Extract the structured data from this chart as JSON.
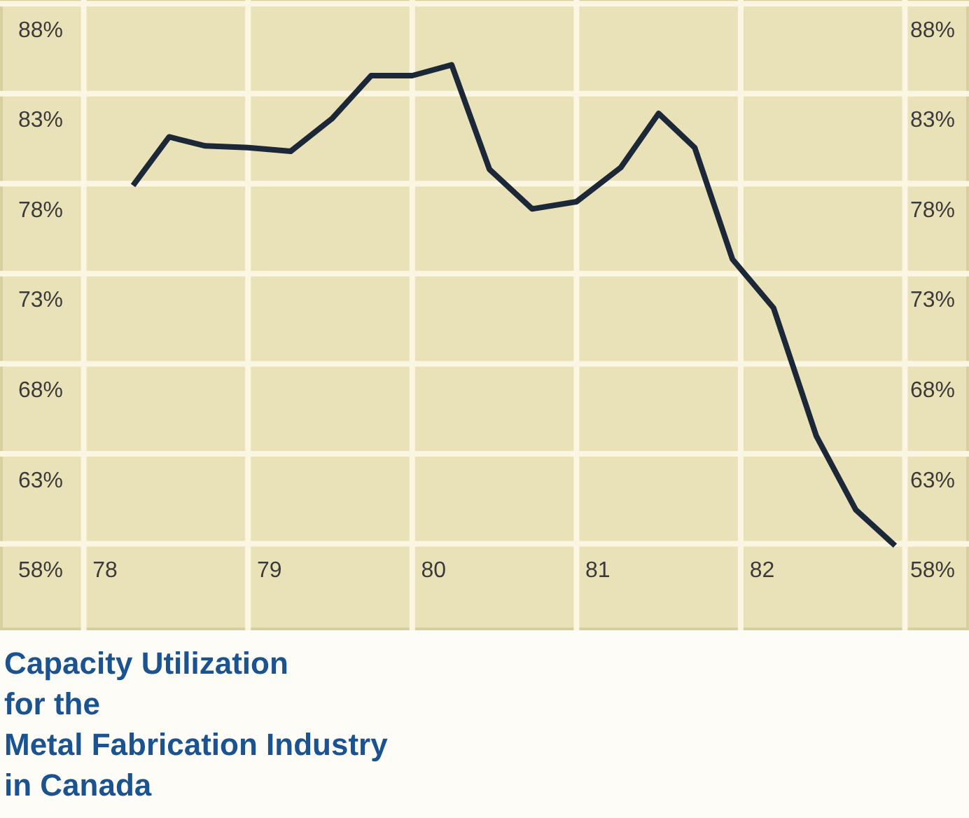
{
  "chart_data": {
    "type": "line",
    "title": "Capacity Utilization\nfor the\nMetal Fabrication Industry\nin Canada",
    "x": [
      78.17,
      78.39,
      78.61,
      78.87,
      79.13,
      79.38,
      79.62,
      79.87,
      80.11,
      80.34,
      80.6,
      80.87,
      81.14,
      81.37,
      81.59,
      81.82,
      82.07,
      82.33,
      82.57,
      82.81
    ],
    "series": [
      {
        "color": "#1c2838",
        "values": [
          79.4,
          82.1,
          81.6,
          81.5,
          81.3,
          83.1,
          85.5,
          85.5,
          86.1,
          80.3,
          78.1,
          78.5,
          80.4,
          83.4,
          81.5,
          75.3,
          72.6,
          65.5,
          61.4,
          59.4
        ]
      }
    ],
    "xlim": [
      77.36,
      83.26
    ],
    "xticks": [
      {
        "value": 77.87,
        "label": null
      },
      {
        "value": 78,
        "label": "78"
      },
      {
        "value": 78.87,
        "label": null
      },
      {
        "value": 79,
        "label": "79"
      },
      {
        "value": 79.87,
        "label": null
      },
      {
        "value": 80,
        "label": "80"
      },
      {
        "value": 80.87,
        "label": null
      },
      {
        "value": 81,
        "label": "81"
      },
      {
        "value": 81.87,
        "label": null
      },
      {
        "value": 82,
        "label": "82"
      },
      {
        "value": 82.87,
        "label": null
      }
    ],
    "ylim": [
      54.7,
      89.7
    ],
    "yticks": [
      {
        "value": 58,
        "label": "58%"
      },
      {
        "value": 59.5,
        "label": null
      },
      {
        "value": 63,
        "label": "63%"
      },
      {
        "value": 64.5,
        "label": null
      },
      {
        "value": 68,
        "label": "68%"
      },
      {
        "value": 69.5,
        "label": null
      },
      {
        "value": 73,
        "label": "73%"
      },
      {
        "value": 74.5,
        "label": null
      },
      {
        "value": 78,
        "label": "78%"
      },
      {
        "value": 79.5,
        "label": null
      },
      {
        "value": 83,
        "label": "83%"
      },
      {
        "value": 84.5,
        "label": null
      },
      {
        "value": 88,
        "label": "88%"
      },
      {
        "value": 89.5,
        "label": null
      }
    ],
    "y2lim": [
      54.7,
      89.7
    ],
    "y2ticks": [
      {
        "value": 58,
        "label": "58%"
      },
      {
        "value": 63,
        "label": "63%"
      },
      {
        "value": 68,
        "label": "68%"
      },
      {
        "value": 73,
        "label": "73%"
      },
      {
        "value": 78,
        "label": "78%"
      },
      {
        "value": 83,
        "label": "83%"
      },
      {
        "value": 88,
        "label": "88%"
      }
    ],
    "grid": true,
    "marker": "none",
    "line_style": "solid"
  }
}
